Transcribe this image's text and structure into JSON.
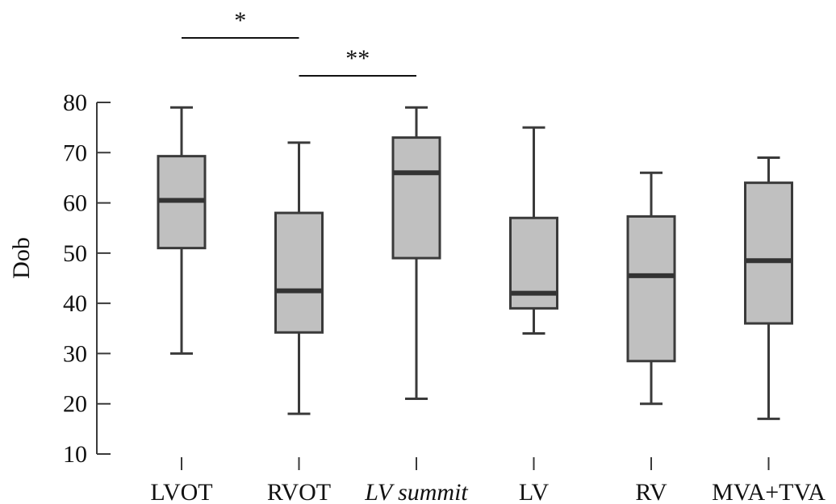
{
  "chart_data": {
    "type": "box",
    "ylabel": "Dob",
    "ylim": [
      10,
      80
    ],
    "yticks": [
      10,
      20,
      30,
      40,
      50,
      60,
      70,
      80
    ],
    "grid": false,
    "categories": [
      {
        "label": "LVOT",
        "italic": false
      },
      {
        "label": "RVOT",
        "italic": false
      },
      {
        "label": "LV summit",
        "italic": true
      },
      {
        "label": "LV",
        "italic": false
      },
      {
        "label": "RV",
        "italic": false
      },
      {
        "label": "MVA+TVA",
        "italic": false
      }
    ],
    "boxes": [
      {
        "whisker_low": 30,
        "q1": 51,
        "median": 60.5,
        "q3": 69.3,
        "whisker_high": 79
      },
      {
        "whisker_low": 18,
        "q1": 34.2,
        "median": 42.5,
        "q3": 58,
        "whisker_high": 72
      },
      {
        "whisker_low": 21,
        "q1": 49,
        "median": 66,
        "q3": 73,
        "whisker_high": 79
      },
      {
        "whisker_low": 34,
        "q1": 39,
        "median": 42,
        "q3": 57,
        "whisker_high": 75
      },
      {
        "whisker_low": 20,
        "q1": 28.5,
        "median": 45.5,
        "q3": 57.3,
        "whisker_high": 66
      },
      {
        "whisker_low": 17,
        "q1": 36,
        "median": 48.5,
        "q3": 64,
        "whisker_high": 69
      }
    ],
    "significance": [
      {
        "from": 0,
        "to": 1,
        "text": "*",
        "level": 1
      },
      {
        "from": 1,
        "to": 2,
        "text": "**",
        "level": 2
      }
    ],
    "colors": {
      "box_fill": "#c0c0c0",
      "box_stroke": "#3a3a3a",
      "median": "#333333",
      "axis": "#3a3a3a"
    }
  }
}
